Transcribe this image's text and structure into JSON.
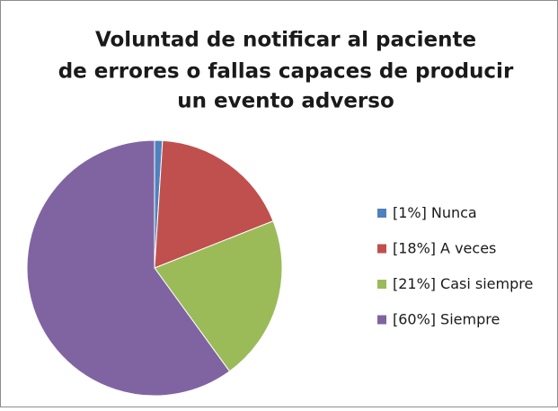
{
  "chart_data": {
    "type": "pie",
    "title": [
      "Voluntad de notificar al paciente",
      "de errores o fallas capaces de producir",
      "un evento adverso"
    ],
    "categories": [
      "Nunca",
      "A veces",
      "Casi siempre",
      "Siempre"
    ],
    "values": [
      1,
      18,
      21,
      60
    ],
    "value_labels": [
      "[1%]",
      "[18%]",
      "[21%]",
      "[60%]"
    ],
    "colors": [
      "#4f81bd",
      "#c0504d",
      "#9bbb59",
      "#8064a2"
    ],
    "legend": "right"
  }
}
